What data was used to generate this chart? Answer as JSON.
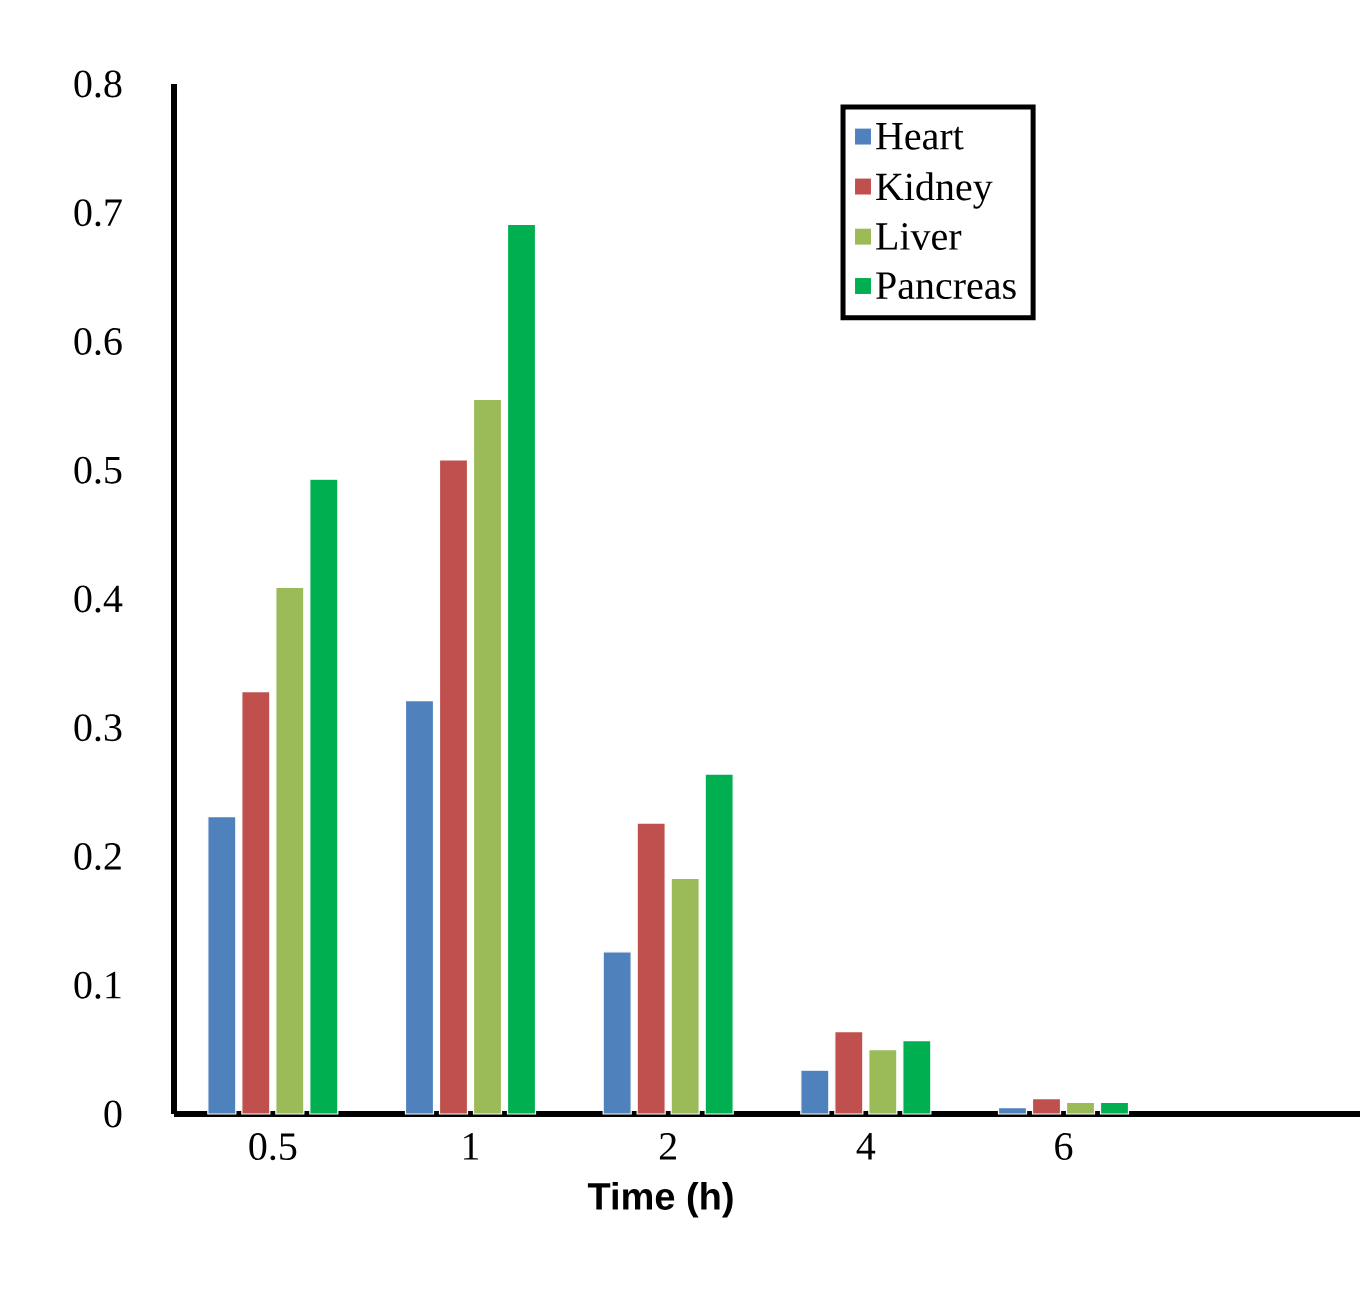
{
  "chart_data": {
    "type": "bar",
    "xlabel": "Time (h)",
    "categories": [
      "0.5",
      "1",
      "2",
      "4",
      "6",
      null
    ],
    "series": [
      {
        "name": "Heart",
        "color": "#4f81bd",
        "values": [
          0.231,
          0.321,
          0.126,
          0.034,
          0.005,
          null
        ]
      },
      {
        "name": "Kidney",
        "color": "#c0504d",
        "values": [
          0.328,
          0.508,
          0.226,
          0.064,
          0.012,
          null
        ]
      },
      {
        "name": "Liver",
        "color": "#9bbb59",
        "values": [
          0.409,
          0.555,
          0.183,
          0.05,
          0.009,
          null
        ]
      },
      {
        "name": "Pancreas",
        "color": "#00b050",
        "values": [
          0.493,
          0.691,
          0.264,
          0.057,
          0.009,
          null
        ]
      }
    ],
    "ylim": [
      0,
      0.8
    ],
    "yticks": [
      0,
      0.1,
      0.2,
      0.3,
      0.4,
      0.5,
      0.6,
      0.7,
      0.8
    ],
    "legend": "top right",
    "grid": false
  }
}
